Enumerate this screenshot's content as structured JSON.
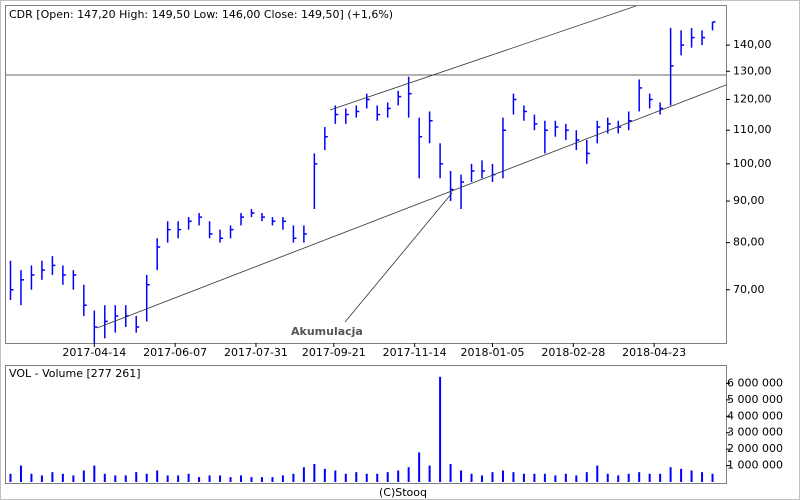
{
  "chart_data": [
    {
      "type": "ohlc",
      "title": "CDR [Open: 147,20  High: 149,50  Low: 146,00  Close: 149,50] (+1,6%)",
      "annotations": [
        "Akumulacja"
      ],
      "color": "#0000ff",
      "log_scale": true,
      "xlim": [
        "2017-02-14",
        "2018-06-10"
      ],
      "xticks": [
        "2017-04-14",
        "2017-06-07",
        "2017-07-31",
        "2017-09-21",
        "2017-11-14",
        "2018-01-05",
        "2018-02-28",
        "2018-04-23"
      ],
      "ylim": [
        60.2,
        156.4
      ],
      "yticks": [
        {
          "value": 70,
          "label": "70,00"
        },
        {
          "value": 80,
          "label": "80,00"
        },
        {
          "value": 90,
          "label": "90,00"
        },
        {
          "value": 100,
          "label": "100,00"
        },
        {
          "value": 110,
          "label": "110,00"
        },
        {
          "value": 120,
          "label": "120,00"
        },
        {
          "value": 130,
          "label": "130,00"
        },
        {
          "value": 140,
          "label": "140,00"
        }
      ],
      "x": [
        "2017-02-17",
        "2017-02-24",
        "2017-03-03",
        "2017-03-10",
        "2017-03-17",
        "2017-03-24",
        "2017-03-31",
        "2017-04-07",
        "2017-04-14",
        "2017-04-21",
        "2017-04-28",
        "2017-05-05",
        "2017-05-12",
        "2017-05-19",
        "2017-05-26",
        "2017-06-02",
        "2017-06-09",
        "2017-06-16",
        "2017-06-23",
        "2017-06-30",
        "2017-07-07",
        "2017-07-14",
        "2017-07-21",
        "2017-07-28",
        "2017-08-04",
        "2017-08-11",
        "2017-08-18",
        "2017-08-25",
        "2017-09-01",
        "2017-09-08",
        "2017-09-15",
        "2017-09-22",
        "2017-09-29",
        "2017-10-06",
        "2017-10-13",
        "2017-10-20",
        "2017-10-27",
        "2017-11-03",
        "2017-11-10",
        "2017-11-17",
        "2017-11-24",
        "2017-12-01",
        "2017-12-08",
        "2017-12-15",
        "2017-12-22",
        "2017-12-29",
        "2018-01-05",
        "2018-01-12",
        "2018-01-19",
        "2018-01-26",
        "2018-02-02",
        "2018-02-09",
        "2018-02-16",
        "2018-02-23",
        "2018-03-02",
        "2018-03-09",
        "2018-03-16",
        "2018-03-23",
        "2018-03-30",
        "2018-04-06",
        "2018-04-13",
        "2018-04-20",
        "2018-04-27",
        "2018-05-04",
        "2018-05-11",
        "2018-05-18",
        "2018-05-25",
        "2018-06-01"
      ],
      "high": [
        76,
        74,
        75,
        76,
        77,
        75,
        74,
        71,
        66,
        67,
        67,
        67,
        65,
        73,
        81,
        85,
        85,
        86,
        87,
        85,
        83,
        84,
        87,
        88,
        87,
        86,
        86,
        84,
        84,
        103,
        111,
        118,
        117,
        118,
        122,
        118,
        119,
        123,
        128,
        114,
        116,
        106,
        98,
        97,
        100,
        101,
        100,
        114,
        122,
        118,
        115,
        113,
        113,
        112,
        110,
        107,
        113,
        114,
        113,
        116,
        127,
        122,
        119,
        147,
        146,
        147,
        146,
        149.5
      ],
      "low": [
        68,
        67,
        70,
        72,
        73,
        71,
        70,
        65,
        60,
        61,
        62,
        63,
        62,
        64,
        74,
        80,
        81,
        83,
        84,
        81,
        80,
        81,
        84,
        86,
        85,
        84,
        83,
        80,
        80,
        88,
        104,
        112,
        112,
        114,
        117,
        113,
        114,
        118,
        114,
        96,
        106,
        96,
        90,
        88,
        95,
        96,
        95,
        96,
        115,
        113,
        110,
        103,
        108,
        107,
        104,
        100,
        106,
        109,
        109,
        110,
        116,
        117,
        115,
        118,
        136,
        139,
        140,
        146
      ],
      "close": [
        70,
        72,
        73,
        74,
        75,
        73,
        73,
        67,
        63,
        64,
        65,
        65,
        63,
        71,
        79,
        83,
        83,
        85,
        86,
        82,
        81,
        83,
        86,
        87,
        86,
        85,
        85,
        81,
        82,
        100,
        108,
        115,
        115,
        116,
        120,
        115,
        117,
        121,
        122,
        108,
        113,
        100,
        93,
        95,
        98,
        98,
        97,
        110,
        120,
        116,
        112,
        110,
        111,
        110,
        107,
        103,
        111,
        112,
        111,
        113,
        124,
        120,
        117,
        132,
        140,
        143,
        143,
        149.5
      ]
    },
    {
      "type": "bar",
      "title": "VOL - Volume [277 261]",
      "color": "#0000ff",
      "ylim": [
        0,
        7000000
      ],
      "yticks": [
        {
          "value": 1000000,
          "label": "1 000 000"
        },
        {
          "value": 2000000,
          "label": "2 000 000"
        },
        {
          "value": 3000000,
          "label": "3 000 000"
        },
        {
          "value": 4000000,
          "label": "4 000 000"
        },
        {
          "value": 5000000,
          "label": "5 000 000"
        },
        {
          "value": 6000000,
          "label": "6 000 000"
        }
      ],
      "values": [
        500000,
        1000000,
        500000,
        400000,
        600000,
        500000,
        400000,
        700000,
        1000000,
        500000,
        400000,
        400000,
        600000,
        500000,
        700000,
        400000,
        400000,
        500000,
        300000,
        400000,
        400000,
        300000,
        400000,
        300000,
        300000,
        300000,
        400000,
        500000,
        900000,
        1100000,
        800000,
        700000,
        500000,
        600000,
        500000,
        500000,
        600000,
        700000,
        900000,
        1800000,
        1000000,
        6400000,
        1100000,
        700000,
        500000,
        400000,
        600000,
        700000,
        600000,
        500000,
        500000,
        500000,
        400000,
        500000,
        400000,
        600000,
        1000000,
        500000,
        400000,
        500000,
        600000,
        500000,
        500000,
        900000,
        800000,
        700000,
        600000,
        500000
      ]
    }
  ],
  "footer": "(C)Stooq"
}
